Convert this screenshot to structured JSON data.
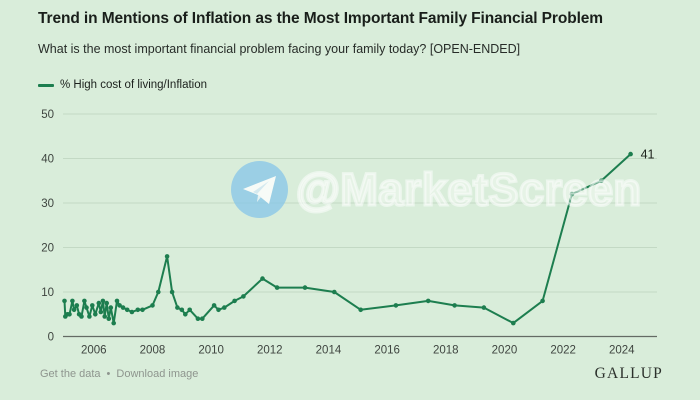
{
  "header": {
    "title": "Trend in Mentions of Inflation as the Most Important Family Financial Problem",
    "subtitle": "What is the most important financial problem facing your family today? [OPEN-ENDED]"
  },
  "legend": {
    "label": "% High cost of living/Inflation",
    "color": "#1d7e4f"
  },
  "chart_data": {
    "type": "line",
    "title": "Trend in Mentions of Inflation as the Most Important Family Financial Problem",
    "xlabel": "",
    "ylabel": "",
    "xlim": [
      2004.95,
      2025.2
    ],
    "ylim": [
      0,
      50
    ],
    "x_ticks": [
      2006,
      2008,
      2010,
      2012,
      2014,
      2016,
      2018,
      2020,
      2022,
      2024
    ],
    "y_ticks": [
      0,
      10,
      20,
      30,
      40,
      50
    ],
    "grid": "horizontal",
    "legend_position": "top-left",
    "series": [
      {
        "name": "% High cost of living/Inflation",
        "color": "#1d7e4f",
        "points": [
          [
            2005.0,
            8
          ],
          [
            2005.03,
            4.5
          ],
          [
            2005.1,
            5
          ],
          [
            2005.17,
            5
          ],
          [
            2005.27,
            8
          ],
          [
            2005.33,
            6
          ],
          [
            2005.42,
            7
          ],
          [
            2005.5,
            5
          ],
          [
            2005.58,
            4.5
          ],
          [
            2005.68,
            8
          ],
          [
            2005.75,
            6.5
          ],
          [
            2005.85,
            4.5
          ],
          [
            2005.95,
            7
          ],
          [
            2006.05,
            5
          ],
          [
            2006.17,
            7.5
          ],
          [
            2006.24,
            5.5
          ],
          [
            2006.31,
            8
          ],
          [
            2006.37,
            4.5
          ],
          [
            2006.44,
            7.5
          ],
          [
            2006.51,
            4
          ],
          [
            2006.58,
            6.5
          ],
          [
            2006.68,
            3
          ],
          [
            2006.79,
            8
          ],
          [
            2006.88,
            7
          ],
          [
            2007.0,
            6.5
          ],
          [
            2007.14,
            6
          ],
          [
            2007.3,
            5.5
          ],
          [
            2007.5,
            6
          ],
          [
            2007.66,
            6
          ],
          [
            2008.0,
            7
          ],
          [
            2008.2,
            10
          ],
          [
            2008.5,
            18
          ],
          [
            2008.67,
            10
          ],
          [
            2008.85,
            6.5
          ],
          [
            2009.0,
            6
          ],
          [
            2009.12,
            5
          ],
          [
            2009.27,
            6
          ],
          [
            2009.55,
            4
          ],
          [
            2009.7,
            4
          ],
          [
            2010.1,
            7
          ],
          [
            2010.25,
            6
          ],
          [
            2010.45,
            6.5
          ],
          [
            2010.8,
            8
          ],
          [
            2011.1,
            9
          ],
          [
            2011.75,
            13
          ],
          [
            2012.25,
            11
          ],
          [
            2013.2,
            11
          ],
          [
            2014.2,
            10
          ],
          [
            2015.1,
            6
          ],
          [
            2016.3,
            7
          ],
          [
            2017.4,
            8
          ],
          [
            2018.3,
            7
          ],
          [
            2019.3,
            6.5
          ],
          [
            2020.3,
            3
          ],
          [
            2021.3,
            8
          ],
          [
            2022.3,
            32
          ],
          [
            2023.3,
            35
          ],
          [
            2024.3,
            41
          ]
        ]
      }
    ],
    "annotations": [
      {
        "text": "41",
        "x": 2024.3,
        "y": 41
      }
    ]
  },
  "watermark": {
    "handle": "@MarketScreen",
    "icon": "telegram-plane-icon",
    "circle_color": "#8cc8e8"
  },
  "footer": {
    "get_data_label": "Get the data",
    "separator": "•",
    "download_label": "Download image",
    "brand": "GALLUP"
  }
}
